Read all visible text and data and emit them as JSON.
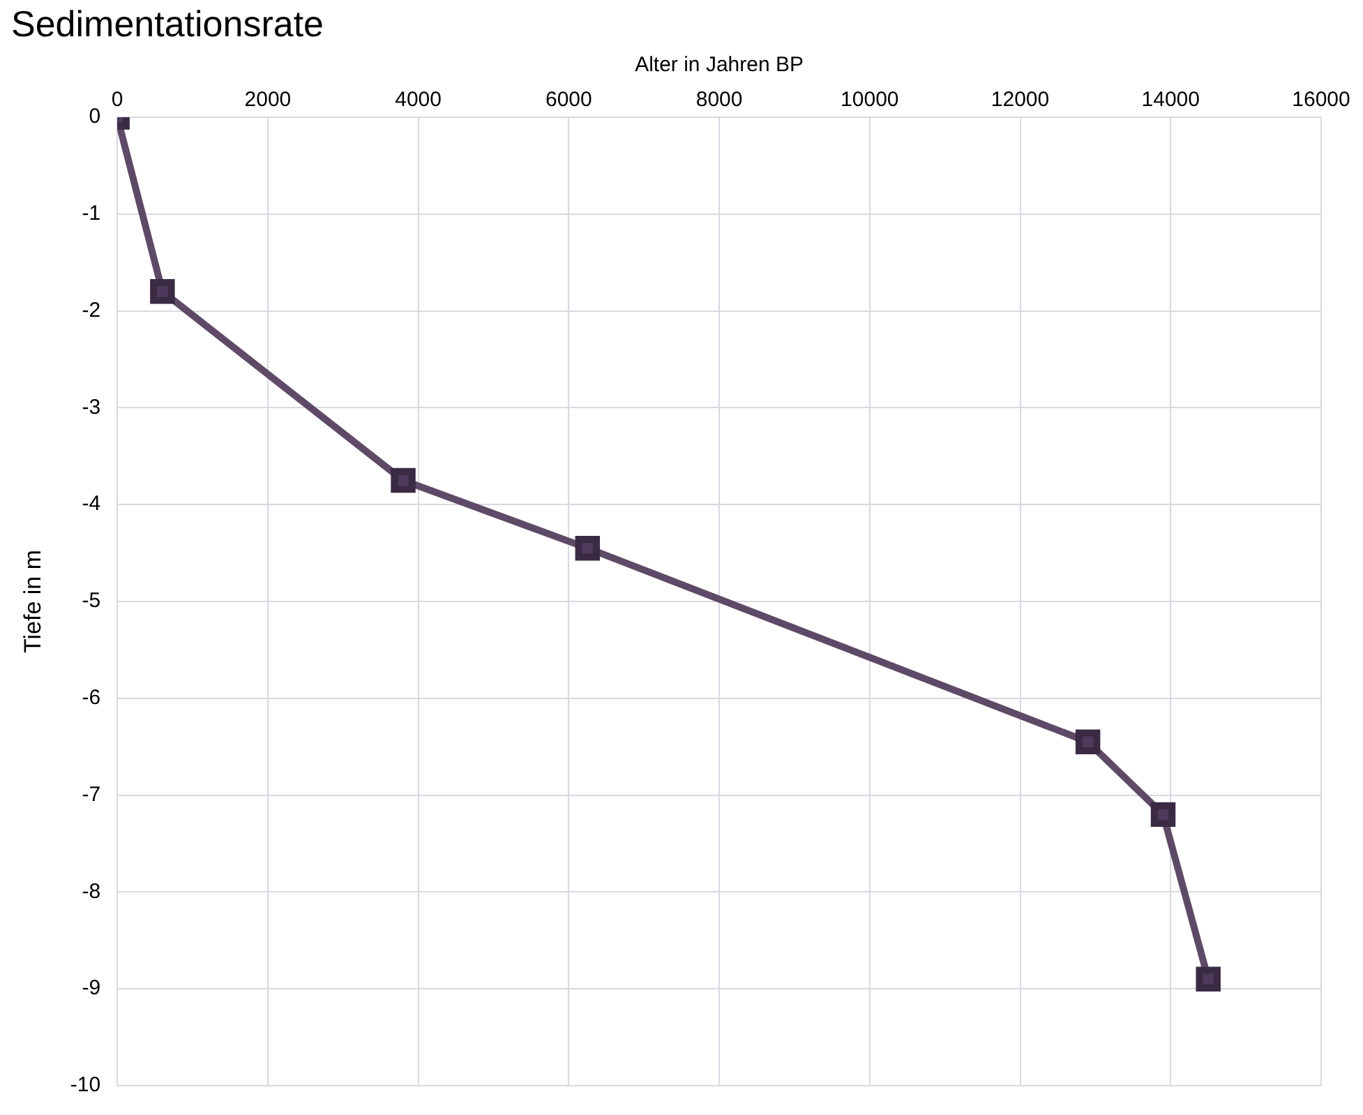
{
  "chart_data": {
    "type": "line",
    "title": "Sedimentationsrate",
    "xlabel": "Alter in Jahren BP",
    "ylabel": "Tiefe in m",
    "x": [
      0,
      600,
      3800,
      6250,
      12900,
      13900,
      14500
    ],
    "series": [
      {
        "color": "#5e4a66",
        "values": [
          0,
          -1.8,
          -3.75,
          -4.45,
          -6.45,
          -7.2,
          -8.9
        ]
      }
    ],
    "xlim": [
      0,
      16000
    ],
    "xticks": [
      0,
      2000,
      4000,
      6000,
      8000,
      10000,
      12000,
      14000,
      16000
    ],
    "ylim": [
      -10,
      0
    ],
    "yticks": [
      0,
      -1,
      -2,
      -3,
      -4,
      -5,
      -6,
      -7,
      -8,
      -9,
      -10
    ],
    "grid": true,
    "legend": false,
    "marker": "square",
    "line_style": "solid"
  }
}
